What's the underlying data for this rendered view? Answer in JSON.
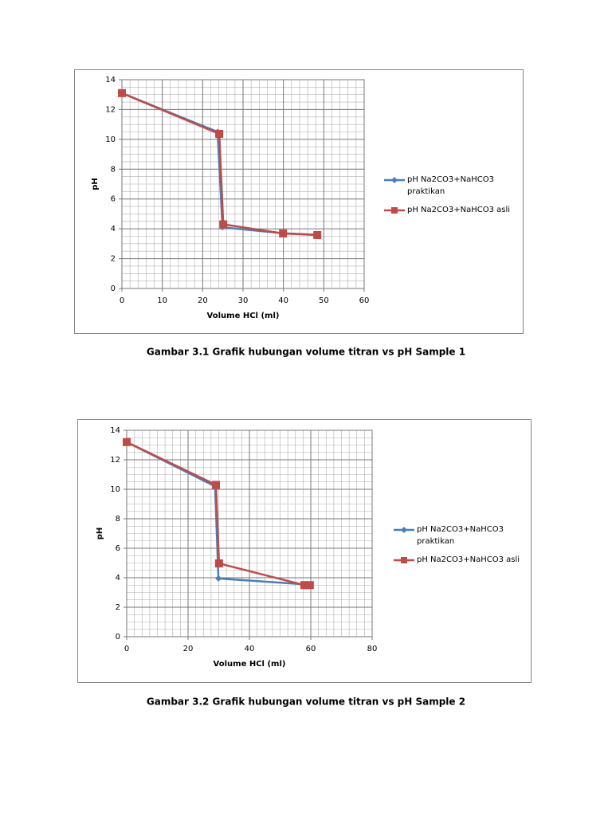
{
  "chart_data": [
    {
      "type": "line",
      "xlabel": "Volume HCl (ml)",
      "ylabel": "pH",
      "xlim": [
        0,
        60
      ],
      "xticks": [
        0,
        10,
        20,
        30,
        40,
        50,
        60
      ],
      "ylim": [
        0,
        14
      ],
      "yticks": [
        0,
        2,
        4,
        6,
        8,
        10,
        12,
        14
      ],
      "grid": true,
      "legend": "right",
      "series": [
        {
          "name": "pH Na2CO3+NaHCO3 praktikan",
          "color": "#4a7ebb",
          "marker": "diamond",
          "x": [
            0,
            23.7,
            24.9,
            39.9,
            48.4
          ],
          "values": [
            13.1,
            10.5,
            4.1,
            3.7,
            3.6
          ]
        },
        {
          "name": "pH Na2CO3+NaHCO3 asli",
          "color": "#be4b48",
          "marker": "square",
          "x": [
            0,
            24.1,
            25.1,
            39.9,
            48.4
          ],
          "values": [
            13.1,
            10.37,
            4.3,
            3.69,
            3.58
          ]
        }
      ]
    },
    {
      "type": "line",
      "xlabel": "Volume HCl (ml)",
      "ylabel": "pH",
      "xlim": [
        0,
        80
      ],
      "xticks": [
        0,
        20,
        40,
        60,
        80
      ],
      "ylim": [
        0,
        14
      ],
      "yticks": [
        0,
        2,
        4,
        6,
        8,
        10,
        12,
        14
      ],
      "grid": true,
      "legend": "right",
      "series": [
        {
          "name": "pH Na2CO3+NaHCO3 praktikan",
          "color": "#4a7ebb",
          "marker": "diamond",
          "x": [
            0,
            28.8,
            29.9,
            58.2
          ],
          "values": [
            13.2,
            10.2,
            3.95,
            3.55
          ]
        },
        {
          "name": "pH Na2CO3+NaHCO3 asli",
          "color": "#be4b48",
          "marker": "square",
          "x": [
            0,
            29.1,
            30.1,
            57.9,
            59.7
          ],
          "values": [
            13.2,
            10.3,
            4.97,
            3.5,
            3.5
          ]
        }
      ]
    }
  ],
  "captions": [
    "Gambar 3.1 Grafik hubungan volume titran vs pH Sample 1",
    "Gambar 3.2 Grafik hubungan volume titran vs pH Sample 2"
  ]
}
